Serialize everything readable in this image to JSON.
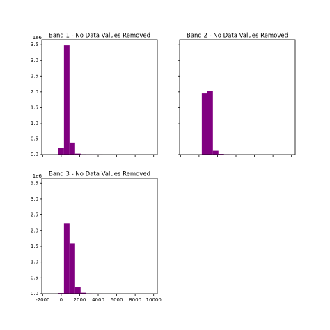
{
  "chart_data": [
    {
      "type": "histogram",
      "title": "Band 1 - No Data Values Removed",
      "color": "#800080",
      "bins": [
        -1500,
        -900,
        -300,
        300,
        900,
        1500,
        2100,
        2700,
        3300,
        3900,
        4500,
        5100,
        5700,
        6300,
        6900,
        7500,
        8100,
        8700,
        9300,
        9900,
        10500
      ],
      "values": [
        0,
        0,
        0.2,
        3.48,
        0.38,
        0.03,
        0.01,
        0.005,
        0.003,
        0.002,
        0,
        0,
        0,
        0,
        0,
        0,
        0,
        0,
        0,
        0
      ],
      "xlim": [
        -2100,
        10400
      ],
      "ylim": [
        0,
        3.66
      ],
      "xticks": [
        -2000,
        0,
        2000,
        4000,
        6000,
        8000,
        10000
      ],
      "xtick_labels": false,
      "yticks": [
        {
          "value": 0,
          "label": "0.0"
        },
        0.5,
        {
          "value": 1,
          "label": "1.0"
        },
        1.5,
        {
          "value": 2,
          "label": "2.0"
        },
        2.5,
        {
          "value": 3,
          "label": "3.0"
        },
        3.5
      ],
      "y_offset_text": "1e6"
    },
    {
      "type": "histogram",
      "title": "Band 2 - No Data Values Removed",
      "color": "#800080",
      "bins": [
        -1500,
        -900,
        -300,
        300,
        900,
        1500,
        2100,
        2700,
        3300,
        3900,
        4500,
        5100,
        5700,
        6300,
        6900,
        7500,
        8100,
        8700,
        9300,
        9900,
        10500
      ],
      "values": [
        0,
        0,
        0,
        1.95,
        2.02,
        0.12,
        0.02,
        0.01,
        0.005,
        0,
        0,
        0,
        0,
        0,
        0,
        0,
        0,
        0,
        0,
        0
      ],
      "xlim": [
        -2100,
        10400
      ],
      "ylim": [
        0,
        3.66
      ],
      "xticks": [
        -2000,
        0,
        2000,
        4000,
        6000,
        8000,
        10000
      ],
      "xtick_labels": false,
      "yticks": [
        0,
        0.5,
        1,
        1.5,
        2,
        2.5,
        3,
        3.5
      ]
    },
    {
      "type": "histogram",
      "title": "Band 3 - No Data Values Removed",
      "color": "#800080",
      "bins": [
        -1500,
        -900,
        -300,
        300,
        900,
        1500,
        2100,
        2700,
        3300,
        3900,
        4500,
        5100,
        5700,
        6300,
        6900,
        7500,
        8100,
        8700,
        9300,
        9900,
        10500
      ],
      "values": [
        0,
        0,
        0.02,
        2.22,
        1.6,
        0.22,
        0.03,
        0.01,
        0.005,
        0.002,
        0,
        0,
        0,
        0,
        0,
        0,
        0,
        0,
        0,
        0
      ],
      "xlim": [
        -2100,
        10400
      ],
      "ylim": [
        0,
        3.66
      ],
      "xticks": [
        -2000,
        0,
        2000,
        4000,
        6000,
        8000,
        10000
      ],
      "xtick_labels": true,
      "yticks": [
        {
          "value": 0,
          "label": "0.0"
        },
        0.5,
        {
          "value": 1,
          "label": "1.0"
        },
        1.5,
        {
          "value": 2,
          "label": "2.0"
        },
        2.5,
        {
          "value": 3,
          "label": "3.0"
        },
        3.5
      ],
      "y_offset_text": "1e6"
    }
  ]
}
